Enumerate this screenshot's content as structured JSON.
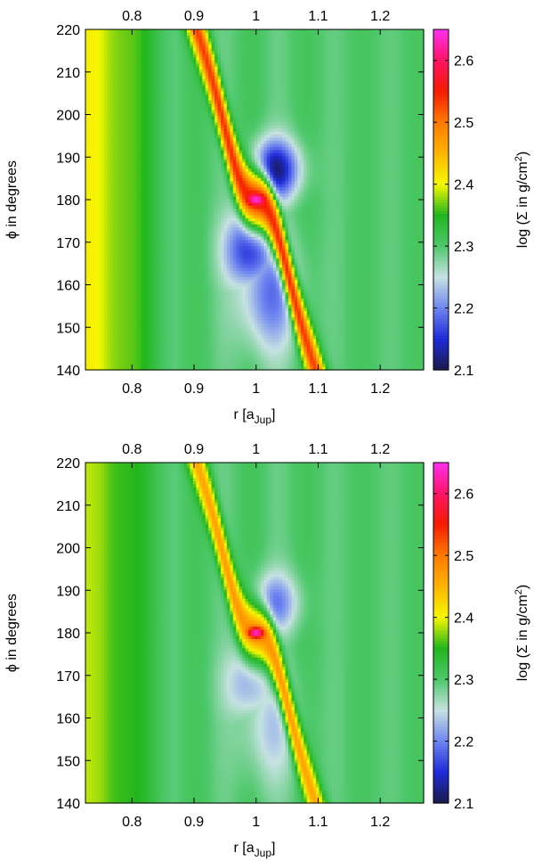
{
  "chart_data": [
    {
      "type": "heatmap",
      "panel": "top",
      "xlabel": "r [a",
      "xlabel_sub": "Jup",
      "xlabel_end": "]",
      "ylabel": "ϕ in degrees",
      "colorbar_label": "log (Σ in g/cm",
      "colorbar_sup": "2",
      "colorbar_end": ")",
      "xlim": [
        0.725,
        1.27
      ],
      "ylim": [
        140,
        220
      ],
      "clim": [
        2.1,
        2.65
      ],
      "xticks": [
        0.8,
        0.9,
        1.0,
        1.1,
        1.2
      ],
      "xtick_labels": [
        "0.8",
        "0.9",
        "1",
        "1.1",
        "1.2"
      ],
      "yticks": [
        140,
        150,
        160,
        170,
        180,
        190,
        200,
        210,
        220
      ],
      "ytick_labels": [
        "140",
        "150",
        "160",
        "170",
        "180",
        "190",
        "200",
        "210",
        "220"
      ],
      "cticks": [
        2.1,
        2.2,
        2.3,
        2.4,
        2.5,
        2.6
      ],
      "ctick_labels": [
        "2.1",
        "2.2",
        "2.3",
        "2.4",
        "2.5",
        "2.6"
      ],
      "features": {
        "planet": {
          "r": 1.0,
          "phi": 180,
          "value": 2.65
        },
        "spiral_arm_peak": 2.55,
        "inner_disk_value": 2.4,
        "background_value": 2.3,
        "gap_minimum": 2.12,
        "gap_depth": "deep"
      }
    },
    {
      "type": "heatmap",
      "panel": "bottom",
      "xlabel": "r [a",
      "xlabel_sub": "Jup",
      "xlabel_end": "]",
      "ylabel": "ϕ in degrees",
      "colorbar_label": "log (Σ in g/cm",
      "colorbar_sup": "2",
      "colorbar_end": ")",
      "xlim": [
        0.725,
        1.27
      ],
      "ylim": [
        140,
        220
      ],
      "clim": [
        2.1,
        2.65
      ],
      "xticks": [
        0.8,
        0.9,
        1.0,
        1.1,
        1.2
      ],
      "xtick_labels": [
        "0.8",
        "0.9",
        "1",
        "1.1",
        "1.2"
      ],
      "yticks": [
        140,
        150,
        160,
        170,
        180,
        190,
        200,
        210,
        220
      ],
      "ytick_labels": [
        "140",
        "150",
        "160",
        "170",
        "180",
        "190",
        "200",
        "210",
        "220"
      ],
      "cticks": [
        2.1,
        2.2,
        2.3,
        2.4,
        2.5,
        2.6
      ],
      "ctick_labels": [
        "2.1",
        "2.2",
        "2.3",
        "2.4",
        "2.5",
        "2.6"
      ],
      "features": {
        "planet": {
          "r": 1.0,
          "phi": 180,
          "value": 2.65
        },
        "spiral_arm_peak": 2.48,
        "inner_disk_value": 2.38,
        "background_value": 2.3,
        "gap_minimum": 2.2,
        "gap_depth": "shallow"
      }
    }
  ],
  "colormap": {
    "name": "gnuplot-style",
    "stops": [
      {
        "v": 2.1,
        "color": "#1a1a4a"
      },
      {
        "v": 2.15,
        "color": "#1e2bd8"
      },
      {
        "v": 2.2,
        "color": "#6f86f0"
      },
      {
        "v": 2.25,
        "color": "#c7e2e2"
      },
      {
        "v": 2.3,
        "color": "#4ec86b"
      },
      {
        "v": 2.35,
        "color": "#22b61e"
      },
      {
        "v": 2.4,
        "color": "#f6f800"
      },
      {
        "v": 2.45,
        "color": "#ffb400"
      },
      {
        "v": 2.5,
        "color": "#ff7a00"
      },
      {
        "v": 2.55,
        "color": "#f41c00"
      },
      {
        "v": 2.6,
        "color": "#ff1466"
      },
      {
        "v": 2.65,
        "color": "#ff30f0"
      }
    ]
  }
}
